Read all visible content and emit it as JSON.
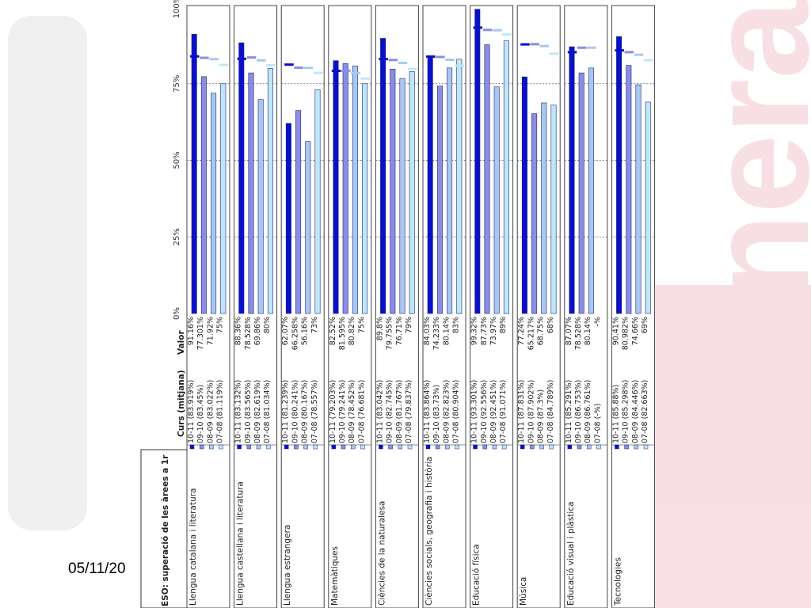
{
  "slide": {
    "date_fragment": "05/11/20",
    "watermark_text": "Generalitat de Catalunya",
    "watermark_color": "#c8102e"
  },
  "chart_data": {
    "type": "bar",
    "orientation": "rotated-90",
    "table_title": "ESO: superació de les àrees a 1r",
    "column_curs": "Curs (mitjana)",
    "column_valor": "Valor",
    "tick_labels": [
      "0%",
      "25%",
      "50%",
      "75%",
      "100%"
    ],
    "ylim": [
      0,
      100
    ],
    "reference_line": 75,
    "series_colors": [
      "#0a10c8",
      "#8c8ce0",
      "#a8c8f0",
      "#bfe6f7"
    ],
    "series_edge": "#1a2a80",
    "groups": [
      {
        "name": "Llengua catalana i literatura",
        "entries": [
          {
            "curs": "10-11 (83.919%)",
            "valor": "91.16%",
            "value": 91.16,
            "mean": 83.919
          },
          {
            "curs": "09-10 (83.45%)",
            "valor": "77.301%",
            "value": 77.301,
            "mean": 83.45
          },
          {
            "curs": "08-09 (83.022%)",
            "valor": "71.92%",
            "value": 71.92,
            "mean": 83.022
          },
          {
            "curs": "07-08 (81.119%)",
            "valor": "75%",
            "value": 75,
            "mean": 81.119
          }
        ]
      },
      {
        "name": "Llengua castellana i literatura",
        "entries": [
          {
            "curs": "10-11 (83.132%)",
            "valor": "88.36%",
            "value": 88.36,
            "mean": 83.132
          },
          {
            "curs": "09-10 (83.565%)",
            "valor": "78.528%",
            "value": 78.528,
            "mean": 83.565
          },
          {
            "curs": "08-09 (82.619%)",
            "valor": "69.86%",
            "value": 69.86,
            "mean": 82.619
          },
          {
            "curs": "07-08 (81.034%)",
            "valor": "80%",
            "value": 80,
            "mean": 81.034
          }
        ]
      },
      {
        "name": "Llengua estrangera",
        "entries": [
          {
            "curs": "10-11 (81.239%)",
            "valor": "62.07%",
            "value": 62.07,
            "mean": 81.239
          },
          {
            "curs": "09-10 (80.241%)",
            "valor": "66.258%",
            "value": 66.258,
            "mean": 80.241
          },
          {
            "curs": "08-09 (80.167%)",
            "valor": "56.16%",
            "value": 56.16,
            "mean": 80.167
          },
          {
            "curs": "07-08 (78.557%)",
            "valor": "73%",
            "value": 73,
            "mean": 78.557
          }
        ]
      },
      {
        "name": "Matemàtiques",
        "entries": [
          {
            "curs": "10-11 (79.203%)",
            "valor": "82.52%",
            "value": 82.52,
            "mean": 79.203
          },
          {
            "curs": "09-10 (79.241%)",
            "valor": "81.595%",
            "value": 81.595,
            "mean": 79.241
          },
          {
            "curs": "08-09 (78.452%)",
            "valor": "80.82%",
            "value": 80.82,
            "mean": 78.452
          },
          {
            "curs": "07-08 (76.681%)",
            "valor": "75%",
            "value": 75,
            "mean": 76.681
          }
        ]
      },
      {
        "name": "Ciències de la naturalesa",
        "entries": [
          {
            "curs": "10-11 (83.042%)",
            "valor": "89.8%",
            "value": 89.8,
            "mean": 83.042
          },
          {
            "curs": "09-10 (82.745%)",
            "valor": "79.755%",
            "value": 79.755,
            "mean": 82.745
          },
          {
            "curs": "08-09 (81.767%)",
            "valor": "76.71%",
            "value": 76.71,
            "mean": 81.767
          },
          {
            "curs": "07-08 (79.837%)",
            "valor": "79%",
            "value": 79,
            "mean": 79.837
          }
        ]
      },
      {
        "name": "Ciències socials, geografia i història",
        "entries": [
          {
            "curs": "10-11 (83.864%)",
            "valor": "84.03%",
            "value": 84.03,
            "mean": 83.864
          },
          {
            "curs": "09-10 (83.73%)",
            "valor": "74.233%",
            "value": 74.233,
            "mean": 83.73
          },
          {
            "curs": "08-09 (82.823%)",
            "valor": "80.14%",
            "value": 80.14,
            "mean": 82.823
          },
          {
            "curs": "07-08 (80.904%)",
            "valor": "83%",
            "value": 83,
            "mean": 80.904
          }
        ]
      },
      {
        "name": "Educació física",
        "entries": [
          {
            "curs": "10-11 (93.301%)",
            "valor": "99.32%",
            "value": 99.32,
            "mean": 93.301
          },
          {
            "curs": "09-10 (92.556%)",
            "valor": "87.73%",
            "value": 87.73,
            "mean": 92.556
          },
          {
            "curs": "08-09 (92.451%)",
            "valor": "73.97%",
            "value": 73.97,
            "mean": 92.451
          },
          {
            "curs": "07-08 (91.071%)",
            "valor": "89%",
            "value": 89,
            "mean": 91.071
          }
        ]
      },
      {
        "name": "Música",
        "entries": [
          {
            "curs": "10-11 (87.831%)",
            "valor": "77.24%",
            "value": 77.24,
            "mean": 87.831
          },
          {
            "curs": "09-10 (87.902%)",
            "valor": "65.217%",
            "value": 65.217,
            "mean": 87.902
          },
          {
            "curs": "08-09 (87.3%)",
            "valor": "68.75%",
            "value": 68.75,
            "mean": 87.3
          },
          {
            "curs": "07-08 (84.789%)",
            "valor": "68%",
            "value": 68,
            "mean": 84.789
          }
        ]
      },
      {
        "name": "Educació visual i plàstica",
        "entries": [
          {
            "curs": "10-11 (85.291%)",
            "valor": "87.07%",
            "value": 87.07,
            "mean": 85.291
          },
          {
            "curs": "09-10 (86.753%)",
            "valor": "78.528%",
            "value": 78.528,
            "mean": 86.753
          },
          {
            "curs": "08-09 (86.761%)",
            "valor": "80.14%",
            "value": 80.14,
            "mean": 86.761
          },
          {
            "curs": "07-08 (-%)",
            "valor": "-%",
            "value": null,
            "mean": null
          }
        ]
      },
      {
        "name": "Tecnologies",
        "entries": [
          {
            "curs": "10-11 (85.88%)",
            "valor": "90.41%",
            "value": 90.41,
            "mean": 85.88
          },
          {
            "curs": "09-10 (85.298%)",
            "valor": "80.982%",
            "value": 80.982,
            "mean": 85.298
          },
          {
            "curs": "08-09 (84.446%)",
            "valor": "74.66%",
            "value": 74.66,
            "mean": 84.446
          },
          {
            "curs": "07-08 (82.663%)",
            "valor": "69%",
            "value": 69,
            "mean": 82.663
          }
        ]
      }
    ]
  }
}
